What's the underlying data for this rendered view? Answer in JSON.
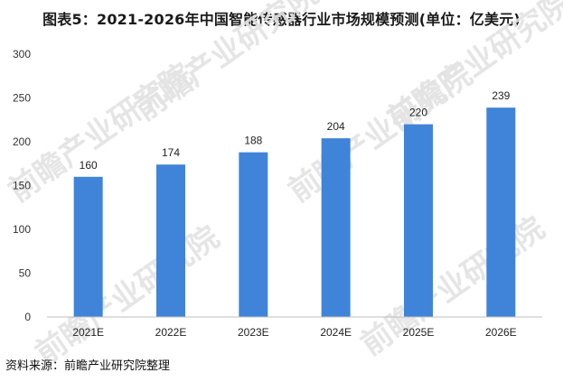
{
  "page": {
    "title": "图表5：2021-2026年中国智能传感器行业市场规模预测(单位：亿美元)",
    "source": "资料来源：前瞻产业研究院整理",
    "watermark": "前瞻产业研究院"
  },
  "chart_data": {
    "type": "bar",
    "title": "图表5：2021-2026年中国智能传感器行业市场规模预测(单位：亿美元)",
    "categories": [
      "2021E",
      "2022E",
      "2023E",
      "2024E",
      "2025E",
      "2026E"
    ],
    "values": [
      160,
      174,
      188,
      204,
      220,
      239
    ],
    "ylim": [
      0,
      300
    ],
    "yticks": [
      0,
      50,
      100,
      150,
      200,
      250,
      300
    ],
    "grid": false,
    "legend": "none",
    "bar_color": "#3f84d9",
    "axis_color": "#bfbfbf"
  }
}
